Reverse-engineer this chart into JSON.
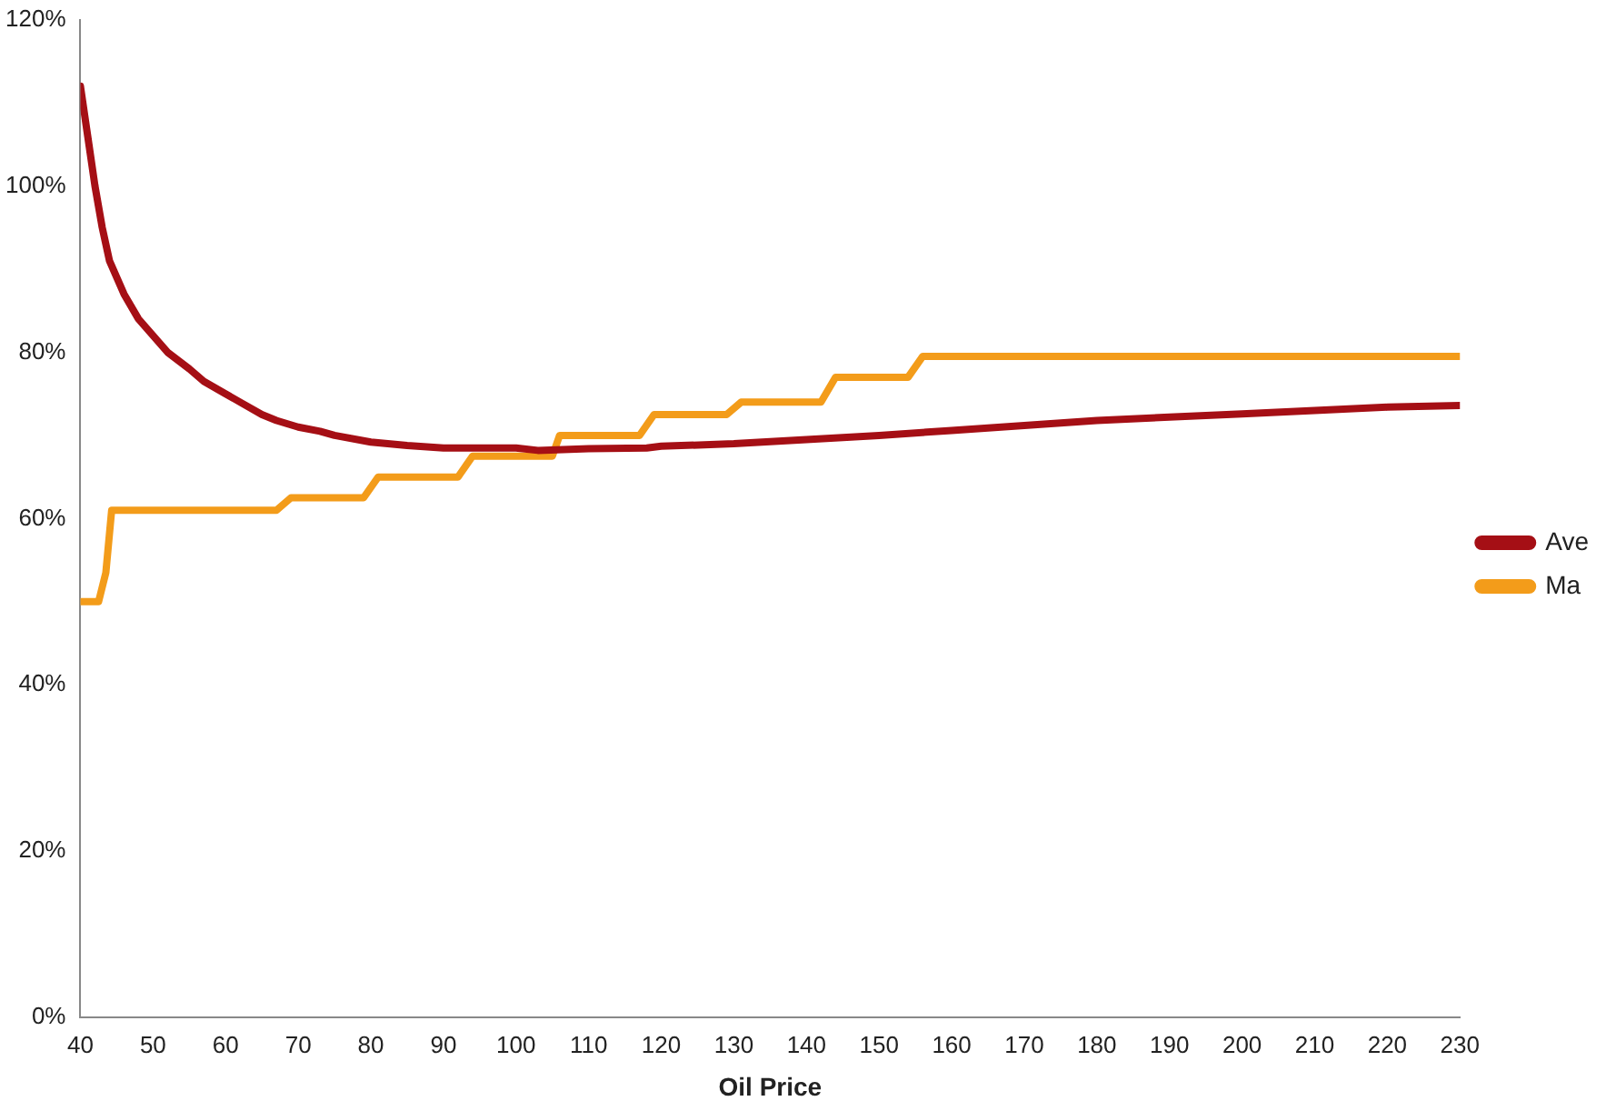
{
  "chart_data": {
    "type": "line",
    "xlabel": "Oil Price",
    "xlim": [
      40,
      230
    ],
    "xticks": [
      40,
      50,
      60,
      70,
      80,
      90,
      100,
      110,
      120,
      130,
      140,
      150,
      160,
      170,
      180,
      190,
      200,
      210,
      220,
      230
    ],
    "ylim": [
      0,
      120
    ],
    "yticks": [
      {
        "value": 0,
        "label": "0%"
      },
      {
        "value": 20,
        "label": "20%"
      },
      {
        "value": 40,
        "label": "40%"
      },
      {
        "value": 60,
        "label": "60%"
      },
      {
        "value": 80,
        "label": "80%"
      },
      {
        "value": 100,
        "label": "100%"
      },
      {
        "value": 120,
        "label": "120%"
      }
    ],
    "grid": false,
    "legend": "right",
    "marker": "none",
    "line_style": "solid",
    "series": [
      {
        "name": "Ave",
        "color": "#a50f15",
        "x": [
          40,
          41,
          42,
          43,
          44,
          45,
          46,
          48,
          50,
          52,
          55,
          57,
          60,
          62,
          65,
          67,
          70,
          73,
          75,
          80,
          85,
          90,
          100,
          103,
          110,
          118,
          120,
          130,
          140,
          150,
          160,
          170,
          180,
          190,
          200,
          210,
          220,
          230
        ],
        "values": [
          112,
          106,
          100,
          95,
          91,
          89,
          87,
          84,
          82,
          80,
          78,
          76.5,
          75,
          74,
          72.5,
          71.8,
          71,
          70.5,
          70,
          69.2,
          68.8,
          68.5,
          68.5,
          68.2,
          68.4,
          68.5,
          68.7,
          69,
          69.5,
          70,
          70.6,
          71.2,
          71.8,
          72.2,
          72.6,
          73,
          73.4,
          73.6
        ]
      },
      {
        "name": "Ma",
        "color": "#f39c1a",
        "x": [
          40,
          42.5,
          43.5,
          44.3,
          67,
          69,
          79,
          81,
          92,
          94,
          105,
          106,
          117,
          119,
          129,
          131,
          142,
          144,
          154,
          156,
          230
        ],
        "values": [
          50,
          50,
          53.5,
          61,
          61,
          62.5,
          62.5,
          65,
          65,
          67.5,
          67.5,
          70,
          70,
          72.5,
          72.5,
          74,
          74,
          77,
          77,
          79.5,
          79.5
        ]
      }
    ]
  }
}
